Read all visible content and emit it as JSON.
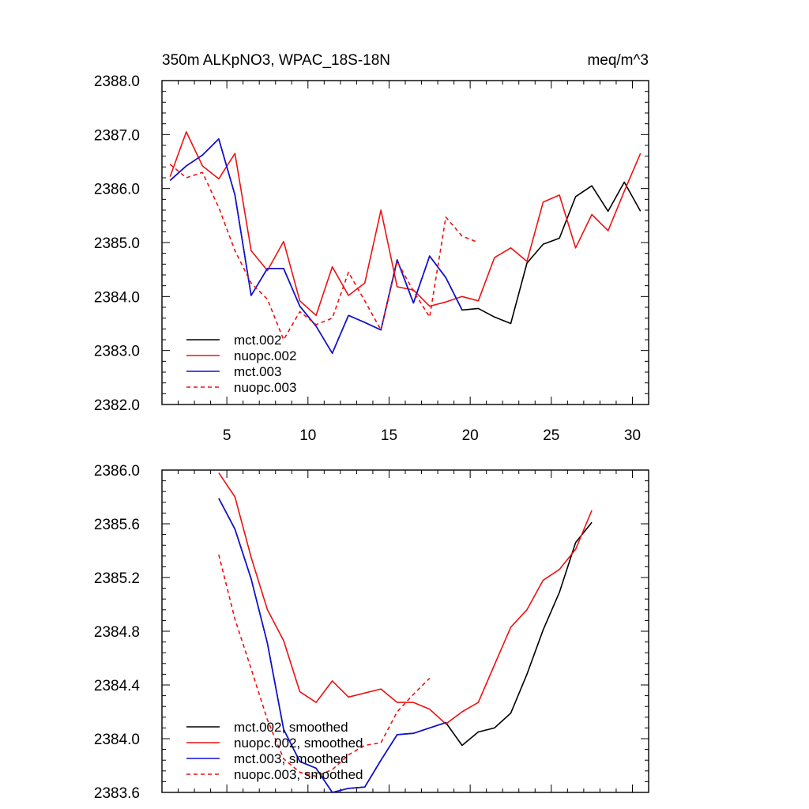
{
  "title_left": "350m ALKpNO3, WPAC_18S-18N",
  "title_right": "meq/m^3",
  "colors": {
    "black": "#000000",
    "red": "#ee1111",
    "blue": "#1010dd"
  },
  "chart_data": [
    {
      "type": "line",
      "xlim": [
        1,
        31
      ],
      "ylim": [
        2382.0,
        2388.0
      ],
      "xticks": [
        5,
        10,
        15,
        20,
        25,
        30
      ],
      "xtick_labels": [
        "5",
        "10",
        "15",
        "20",
        "25",
        "30"
      ],
      "yticks": [
        2382.0,
        2383.0,
        2384.0,
        2385.0,
        2386.0,
        2387.0,
        2388.0
      ],
      "ytick_labels": [
        "2382.0",
        "2383.0",
        "2384.0",
        "2385.0",
        "2386.0",
        "2387.0",
        "2388.0"
      ],
      "legend_position": "lower-left",
      "series": [
        {
          "name": "mct.002",
          "color": "#000000",
          "dash": "solid",
          "x": [
            1.5,
            2.5,
            3.5,
            4.5,
            5.5,
            6.5,
            7.5,
            8.5,
            9.5,
            10.5,
            11.5,
            12.5,
            13.5,
            14.5,
            15.5,
            16.5,
            17.5,
            18.5,
            19.5,
            20.5,
            21.5,
            22.5,
            23.5,
            24.5,
            25.5,
            26.5,
            27.5,
            28.5,
            29.5,
            30.5
          ],
          "y": [
            2386.15,
            2386.42,
            2386.62,
            2386.92,
            2385.88,
            2384.02,
            2384.52,
            2384.52,
            2383.82,
            2383.45,
            2382.95,
            2383.65,
            2383.52,
            2383.38,
            2384.68,
            2383.88,
            2384.75,
            2384.35,
            2383.75,
            2383.78,
            2383.62,
            2383.5,
            2384.62,
            2384.97,
            2385.08,
            2385.85,
            2386.05,
            2385.58,
            2386.12,
            2385.58
          ]
        },
        {
          "name": "nuopc.002",
          "color": "#ee1111",
          "dash": "solid",
          "x": [
            1.5,
            2.5,
            3.5,
            4.5,
            5.5,
            6.5,
            7.5,
            8.5,
            9.5,
            10.5,
            11.5,
            12.5,
            13.5,
            14.5,
            15.5,
            16.5,
            17.5,
            18.5,
            19.5,
            20.5,
            21.5,
            22.5,
            23.5,
            24.5,
            25.5,
            26.5,
            27.5,
            28.5,
            29.5,
            30.5
          ],
          "y": [
            2386.22,
            2387.05,
            2386.42,
            2386.18,
            2386.65,
            2384.85,
            2384.48,
            2385.02,
            2383.92,
            2383.65,
            2384.55,
            2384.02,
            2384.25,
            2385.6,
            2384.18,
            2384.12,
            2383.82,
            2383.9,
            2384.0,
            2383.92,
            2384.72,
            2384.9,
            2384.65,
            2385.75,
            2385.88,
            2384.9,
            2385.52,
            2385.22,
            2385.95,
            2386.65
          ]
        },
        {
          "name": "mct.003",
          "color": "#1010dd",
          "dash": "solid",
          "x": [
            1.5,
            2.5,
            3.5,
            4.5,
            5.5,
            6.5,
            7.5,
            8.5,
            9.5,
            10.5,
            11.5,
            12.5,
            13.5,
            14.5,
            15.5,
            16.5,
            17.5,
            18.5,
            19.5
          ],
          "y": [
            2386.15,
            2386.42,
            2386.62,
            2386.92,
            2385.88,
            2384.02,
            2384.52,
            2384.52,
            2383.82,
            2383.45,
            2382.95,
            2383.65,
            2383.52,
            2383.38,
            2384.68,
            2383.88,
            2384.75,
            2384.35,
            2383.75
          ]
        },
        {
          "name": "nuopc.003",
          "color": "#ee1111",
          "dash": "dashed",
          "x": [
            1.5,
            2.5,
            3.5,
            4.5,
            5.5,
            6.5,
            7.5,
            8.5,
            9.5,
            10.5,
            11.5,
            12.5,
            13.5,
            14.5,
            15.5,
            16.5,
            17.5,
            18.5,
            19.5,
            20.5
          ],
          "y": [
            2386.45,
            2386.2,
            2386.3,
            2385.65,
            2384.85,
            2384.25,
            2383.95,
            2383.2,
            2383.72,
            2383.48,
            2383.6,
            2384.45,
            2383.92,
            2383.38,
            2384.65,
            2384.1,
            2383.62,
            2385.47,
            2385.12,
            2385.0
          ]
        }
      ]
    },
    {
      "type": "line",
      "xlim": [
        1,
        31
      ],
      "ylim": [
        2383.6,
        2386.0
      ],
      "xticks": [
        5,
        10,
        15,
        20,
        25,
        30
      ],
      "xtick_labels": [],
      "yticks": [
        2383.6,
        2384.0,
        2384.4,
        2384.8,
        2385.2,
        2385.6,
        2386.0
      ],
      "ytick_labels": [
        "2383.6",
        "2384.0",
        "2384.4",
        "2384.8",
        "2385.2",
        "2385.6",
        "2386.0"
      ],
      "legend_position": "lower-left",
      "series": [
        {
          "name": "mct.002, smoothed",
          "color": "#000000",
          "dash": "solid",
          "x": [
            4.5,
            5.5,
            6.5,
            7.5,
            8.5,
            9.5,
            10.5,
            11.5,
            12.5,
            13.5,
            14.5,
            15.5,
            16.5,
            17.5,
            18.5,
            19.5,
            20.5,
            21.5,
            22.5,
            23.5,
            24.5,
            25.5,
            26.5,
            27.5
          ],
          "y": [
            2385.79,
            2385.56,
            2385.19,
            2384.71,
            2384.07,
            2383.83,
            2383.78,
            2383.6,
            2383.63,
            2383.64,
            2383.84,
            2384.03,
            2384.04,
            2384.08,
            2384.12,
            2383.95,
            2384.05,
            2384.08,
            2384.19,
            2384.48,
            2384.81,
            2385.09,
            2385.46,
            2385.61
          ]
        },
        {
          "name": "nuopc.002, smoothed",
          "color": "#ee1111",
          "dash": "solid",
          "x": [
            4.5,
            5.5,
            6.5,
            7.5,
            8.5,
            9.5,
            10.5,
            11.5,
            12.5,
            13.5,
            14.5,
            15.5,
            16.5,
            17.5,
            18.5,
            19.5,
            20.5,
            21.5,
            22.5,
            23.5,
            24.5,
            25.5,
            26.5,
            27.5
          ],
          "y": [
            2385.98,
            2385.8,
            2385.35,
            2384.96,
            2384.73,
            2384.35,
            2384.27,
            2384.43,
            2384.31,
            2384.34,
            2384.37,
            2384.27,
            2384.27,
            2384.22,
            2384.11,
            2384.2,
            2384.27,
            2384.55,
            2384.83,
            2384.96,
            2385.18,
            2385.26,
            2385.41,
            2385.7
          ]
        },
        {
          "name": "mct.003, smoothed",
          "color": "#1010dd",
          "dash": "solid",
          "x": [
            4.5,
            5.5,
            6.5,
            7.5,
            8.5,
            9.5,
            10.5,
            11.5,
            12.5,
            13.5,
            14.5,
            15.5,
            16.5,
            17.5,
            18.5
          ],
          "y": [
            2385.79,
            2385.56,
            2385.19,
            2384.71,
            2384.07,
            2383.83,
            2383.78,
            2383.6,
            2383.63,
            2383.64,
            2383.84,
            2384.03,
            2384.04,
            2384.08,
            2384.12
          ]
        },
        {
          "name": "nuopc.003, smoothed",
          "color": "#ee1111",
          "dash": "dashed",
          "x": [
            4.5,
            5.5,
            6.5,
            7.5,
            8.5,
            9.5,
            10.5,
            11.5,
            12.5,
            13.5,
            14.5,
            15.5,
            16.5,
            17.5
          ],
          "y": [
            2385.37,
            2384.89,
            2384.52,
            2384.14,
            2383.85,
            2383.75,
            2383.72,
            2383.77,
            2383.88,
            2383.95,
            2383.97,
            2384.2,
            2384.33,
            2384.45
          ]
        }
      ]
    }
  ]
}
